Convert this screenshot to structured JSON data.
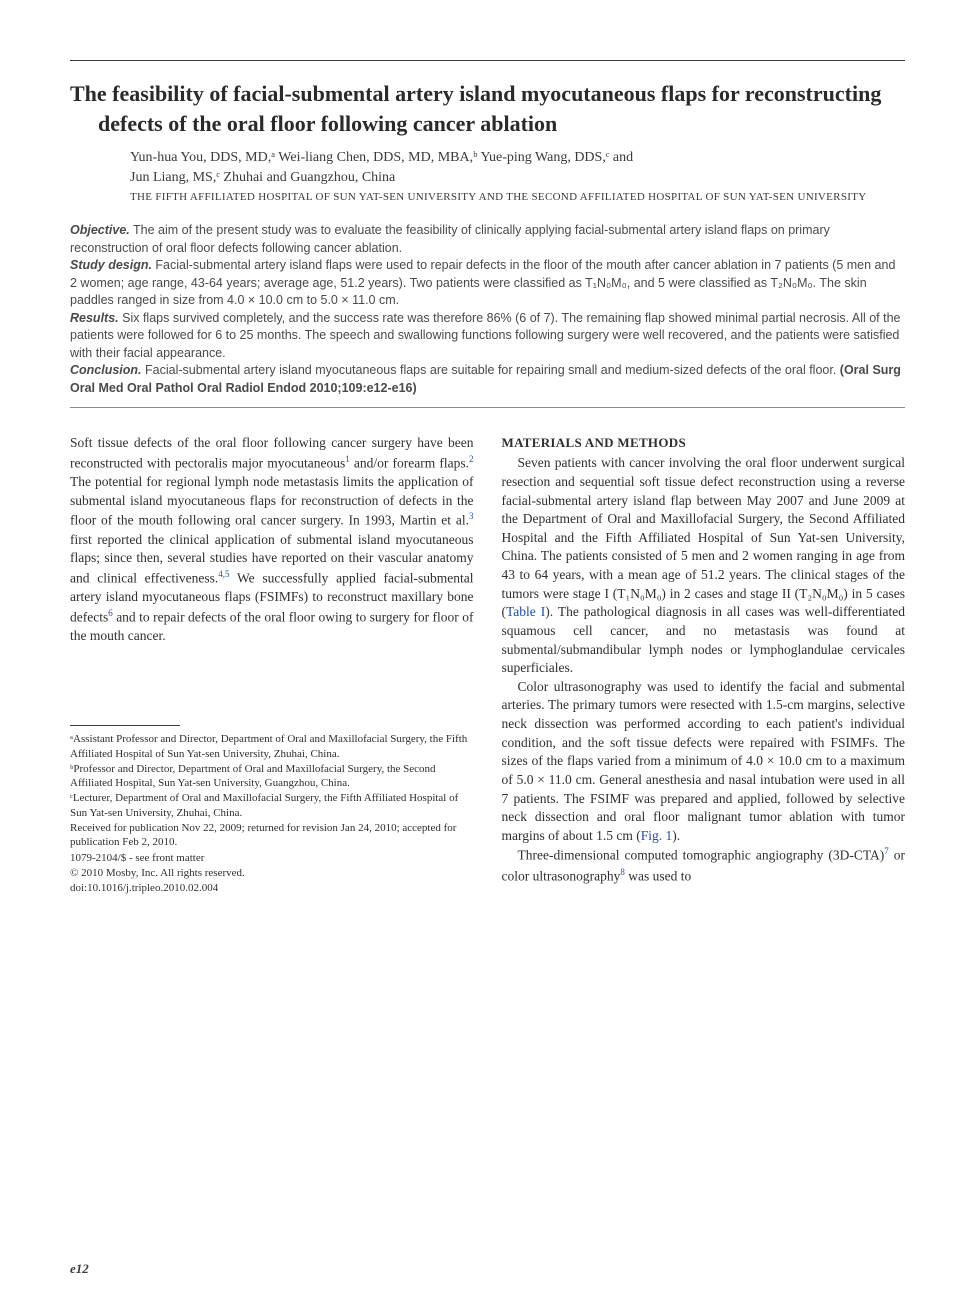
{
  "title": "The feasibility of facial-submental artery island myocutaneous flaps for reconstructing defects of the oral floor following cancer ablation",
  "authors_line1": "Yun-hua You, DDS, MD,ᵃ Wei-liang Chen, DDS, MD, MBA,ᵇ Yue-ping Wang, DDS,ᶜ and",
  "authors_line2": "Jun Liang, MS,ᶜ Zhuhai and Guangzhou, China",
  "affiliation_caps": "THE FIFTH AFFILIATED HOSPITAL OF SUN YAT-SEN UNIVERSITY AND THE SECOND AFFILIATED HOSPITAL OF SUN YAT-SEN UNIVERSITY",
  "abstract": {
    "objective_label": "Objective.",
    "objective_text": " The aim of the present study was to evaluate the feasibility of clinically applying facial-submental artery island flaps on primary reconstruction of oral floor defects following cancer ablation.",
    "design_label": "Study design.",
    "design_text": " Facial-submental artery island flaps were used to repair defects in the floor of the mouth after cancer ablation in 7 patients (5 men and 2 women; age range, 43-64 years; average age, 51.2 years). Two patients were classified as T₁N₀M₀, and 5 were classified as T₂N₀M₀. The skin paddles ranged in size from 4.0 × 10.0 cm to 5.0 × 11.0 cm.",
    "results_label": "Results.",
    "results_text": " Six flaps survived completely, and the success rate was therefore 86% (6 of 7). The remaining flap showed minimal partial necrosis. All of the patients were followed for 6 to 25 months. The speech and swallowing functions following surgery were well recovered, and the patients were satisfied with their facial appearance.",
    "conclusion_label": "Conclusion.",
    "conclusion_text": " Facial-submental artery island myocutaneous flaps are suitable for repairing small and medium-sized defects of the oral floor. ",
    "citation": "(Oral Surg Oral Med Oral Pathol Oral Radiol Endod 2010;109:e12-e16)"
  },
  "body": {
    "left_p1_a": "Soft tissue defects of the oral floor following cancer surgery have been reconstructed with pectoralis major myocutaneous",
    "left_sup1": "1",
    "left_p1_b": " and/or forearm flaps.",
    "left_sup2": "2",
    "left_p1_c": " The potential for regional lymph node metastasis limits the application of submental island myocutaneous flaps for reconstruction of defects in the floor of the mouth following oral cancer surgery. In 1993, Martin et al.",
    "left_sup3": "3",
    "left_p1_d": " first reported the clinical application of submental island myocutaneous flaps; since then, several studies have reported on their vascular anatomy and clinical effectiveness.",
    "left_sup45": "4,5",
    "left_p1_e": " We successfully applied facial-submental artery island myocutaneous flaps (FSIMFs) to reconstruct maxillary bone defects",
    "left_sup6": "6",
    "left_p1_f": " and to repair defects of the oral floor owing to surgery for floor of the mouth cancer.",
    "materials_head": "MATERIALS AND METHODS",
    "right_p1_a": "Seven patients with cancer involving the oral floor underwent surgical resection and sequential soft tissue defect reconstruction using a reverse facial-submental artery island flap between May 2007 and June 2009 at the Department of Oral and Maxillofacial Surgery, the Second Affiliated Hospital and the Fifth Affiliated Hospital of Sun Yat-sen University, China. The patients consisted of 5 men and 2 women ranging in age from 43 to 64 years, with a mean age of 51.2 years. The clinical stages of the tumors were stage I (T₁N₀M₀) in 2 cases and stage II (T₂N₀M₀) in 5 cases (",
    "right_tablelink": "Table I",
    "right_p1_b": "). The pathological diagnosis in all cases was well-differentiated squamous cell cancer, and no metastasis was found at submental/submandibular lymph nodes or lymphoglandulae cervicales superficiales.",
    "right_p2_a": "Color ultrasonography was used to identify the facial and submental arteries. The primary tumors were resected with 1.5-cm margins, selective neck dissection was performed according to each patient's individual condition, and the soft tissue defects were repaired with FSIMFs. The sizes of the flaps varied from a minimum of 4.0 × 10.0 cm to a maximum of 5.0 × 11.0 cm. General anesthesia and nasal intubation were used in all 7 patients. The FSIMF was prepared and applied, followed by selective neck dissection and oral floor malignant tumor ablation with tumor margins of about 1.5 cm (",
    "right_figlink": "Fig. 1",
    "right_p2_b": ").",
    "right_p3_a": "Three-dimensional computed tomographic angiography (3D-CTA)",
    "right_sup7": "7",
    "right_p3_b": " or color ultrasonography",
    "right_sup8": "8",
    "right_p3_c": " was used to"
  },
  "footnotes": {
    "a": "ᵃAssistant Professor and Director, Department of Oral and Maxillofacial Surgery, the Fifth Affiliated Hospital of Sun Yat-sen University, Zhuhai, China.",
    "b": "ᵇProfessor and Director, Department of Oral and Maxillofacial Surgery, the Second Affiliated Hospital, Sun Yat-sen University, Guangzhou, China.",
    "c": "ᶜLecturer, Department of Oral and Maxillofacial Surgery, the Fifth Affiliated Hospital of Sun Yat-sen University, Zhuhai, China.",
    "received": "Received for publication Nov 22, 2009; returned for revision Jan 24, 2010; accepted for publication Feb 2, 2010.",
    "issn": "1079-2104/$ - see front matter",
    "copyright": "© 2010 Mosby, Inc. All rights reserved.",
    "doi": "doi:10.1016/j.tripleo.2010.02.004"
  },
  "page_number": "e12"
}
